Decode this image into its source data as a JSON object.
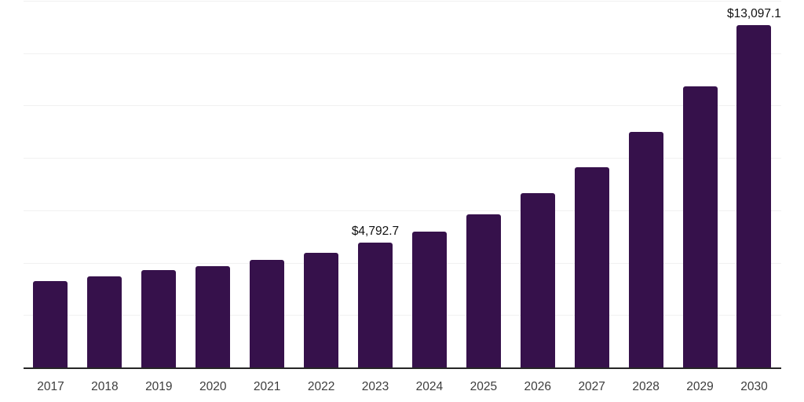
{
  "chart_data": {
    "type": "bar",
    "title": "",
    "xlabel": "",
    "ylabel": "",
    "categories": [
      "2017",
      "2018",
      "2019",
      "2020",
      "2021",
      "2022",
      "2023",
      "2024",
      "2025",
      "2026",
      "2027",
      "2028",
      "2029",
      "2030"
    ],
    "values": [
      3330,
      3510,
      3760,
      3890,
      4140,
      4400,
      4792.7,
      5230,
      5880,
      6680,
      7680,
      9010,
      10770,
      13097.1
    ],
    "data_labels": [
      "",
      "",
      "",
      "",
      "",
      "",
      "$4,792.7",
      "",
      "",
      "",
      "",
      "",
      "",
      "$13,097.1"
    ],
    "ylim": [
      0,
      14000
    ],
    "gridline_step": 2000,
    "grid": "horizontal-only",
    "legend": "none",
    "y_axis_labels_visible": false,
    "bar_color": "#36114B",
    "grid_color": "#f1f1f1",
    "axis_line_color": "#262626",
    "tick_label_color": "#3d3d3d",
    "value_label_color": "#111111"
  }
}
